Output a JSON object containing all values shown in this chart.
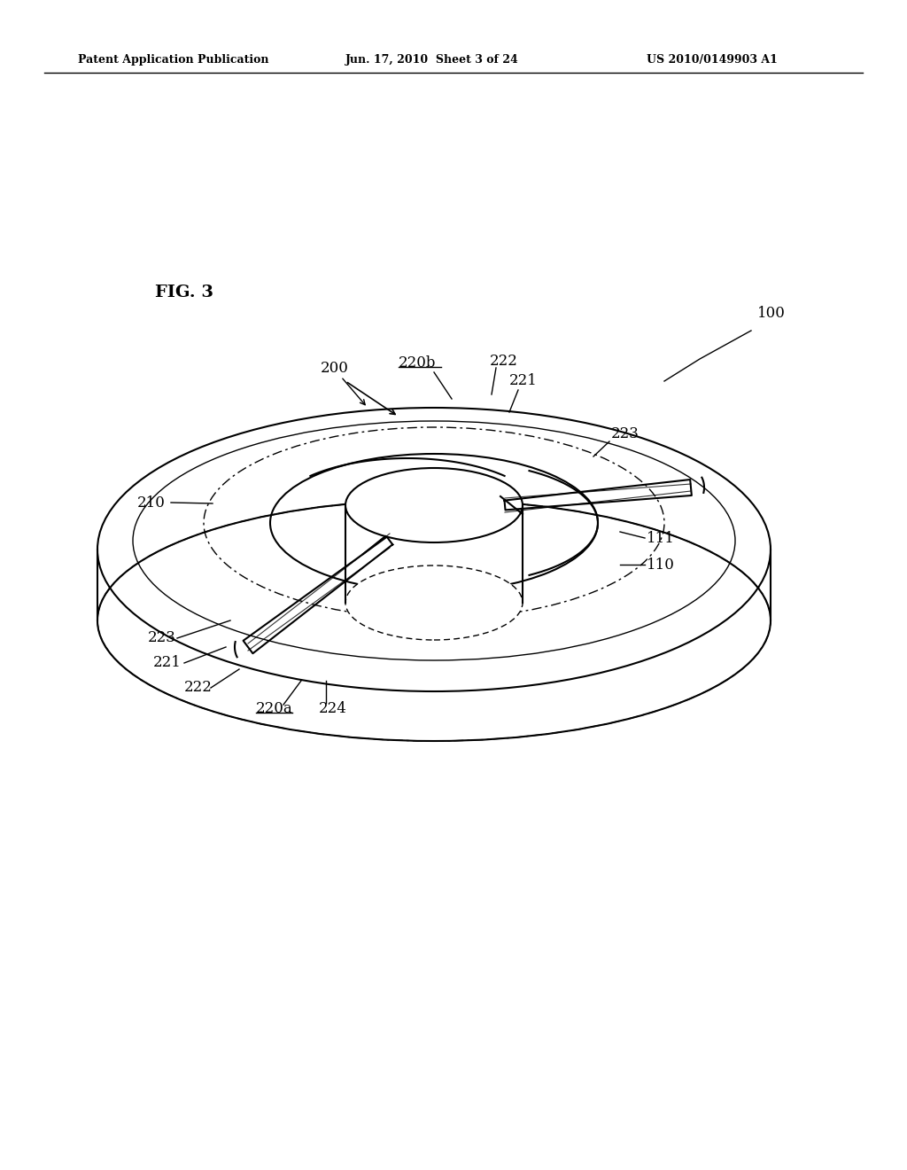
{
  "bg_color": "#ffffff",
  "line_color": "#000000",
  "header_left": "Patent Application Publication",
  "header_mid": "Jun. 17, 2010  Sheet 3 of 24",
  "header_right": "US 2010/0149903 A1",
  "fig_label": "FIG. 3",
  "ref_100": "100",
  "ref_110": "110",
  "ref_111": "111",
  "ref_200": "200",
  "ref_210": "210",
  "ref_220a": "220a",
  "ref_220b": "220b",
  "ref_221_top": "221",
  "ref_221_bot": "221",
  "ref_222_top": "222",
  "ref_222_bot": "222",
  "ref_223_top": "223",
  "ref_223_bot": "223",
  "ref_224": "224"
}
